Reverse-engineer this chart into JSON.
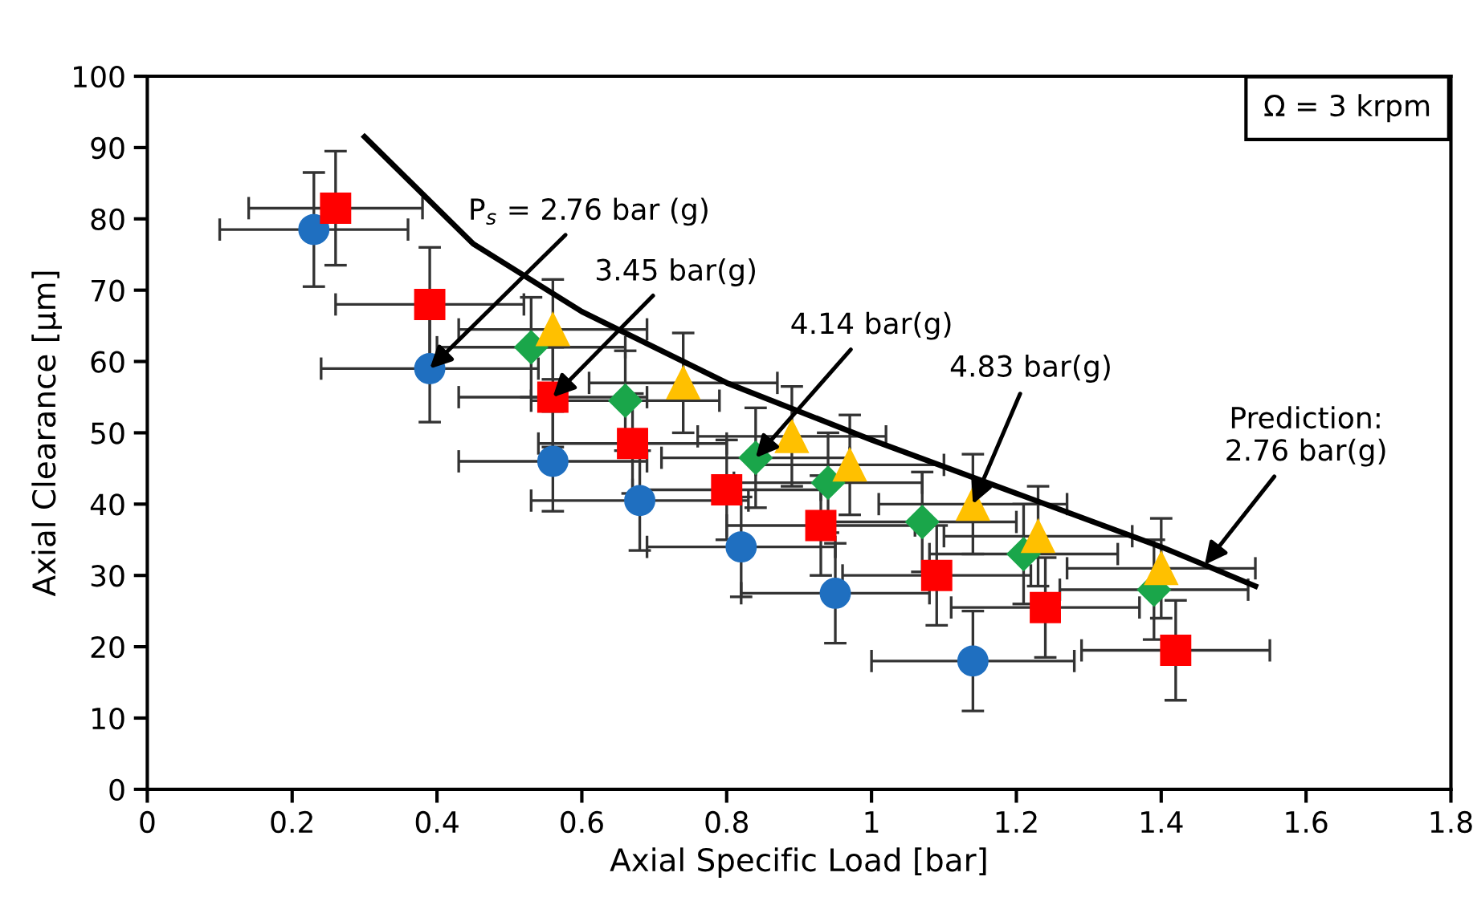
{
  "chart_data": {
    "type": "scatter",
    "xlabel": "Axial Specific Load [bar]",
    "ylabel": "Axial Clearance [μm]",
    "xlim": [
      0,
      1.8
    ],
    "xticks": [
      {
        "value": 0,
        "label": "0"
      },
      0.2,
      0.4,
      0.6,
      0.8,
      {
        "value": 1.0,
        "label": "1"
      },
      1.2,
      1.4,
      1.6,
      1.8
    ],
    "ylim": [
      0,
      100
    ],
    "yticks": [
      0,
      10,
      20,
      30,
      40,
      50,
      60,
      70,
      80,
      90,
      100
    ],
    "grid": false,
    "legend": false,
    "series": [
      {
        "marker": "circle",
        "color": "#1f6fc0",
        "x": [
          0.23,
          0.39,
          0.56,
          0.68,
          0.82,
          0.95,
          1.14
        ],
        "values": [
          78.5,
          59,
          46,
          40.5,
          34,
          27.5,
          18
        ],
        "errors": [
          8,
          7.5,
          7,
          7,
          7,
          7,
          7
        ],
        "xerrors": [
          0.13,
          0.15,
          0.13,
          0.15,
          0.13,
          0.13,
          0.14
        ]
      },
      {
        "marker": "square",
        "color": "#ff0000",
        "x": [
          0.26,
          0.39,
          0.56,
          0.67,
          0.8,
          0.93,
          1.09,
          1.24,
          1.42
        ],
        "values": [
          81.5,
          68,
          55,
          48.5,
          42,
          37,
          30,
          25.5,
          19.5
        ],
        "errors": [
          8,
          8,
          7,
          7,
          7,
          7,
          7,
          7,
          7
        ],
        "xerrors": [
          0.12,
          0.13,
          0.13,
          0.13,
          0.13,
          0.13,
          0.13,
          0.13,
          0.13
        ]
      },
      {
        "marker": "diamond",
        "color": "#1aa64a",
        "x": [
          0.53,
          0.66,
          0.84,
          0.94,
          1.07,
          1.21,
          1.39
        ],
        "values": [
          62,
          54.5,
          46.5,
          43,
          37.5,
          33,
          28
        ],
        "errors": [
          7,
          7,
          7,
          7,
          7,
          7,
          7
        ],
        "xerrors": [
          0.13,
          0.13,
          0.13,
          0.13,
          0.13,
          0.13,
          0.13
        ]
      },
      {
        "marker": "triangle",
        "color": "#ffc000",
        "x": [
          0.56,
          0.74,
          0.89,
          0.97,
          1.14,
          1.23,
          1.4
        ],
        "values": [
          64.5,
          57,
          49.5,
          45.5,
          40,
          35.5,
          31
        ],
        "errors": [
          7,
          7,
          7,
          7,
          7,
          7,
          7
        ],
        "xerrors": [
          0.13,
          0.13,
          0.13,
          0.13,
          0.13,
          0.13,
          0.13
        ]
      },
      {
        "type": "line",
        "marker": "none",
        "line_style": "solid",
        "color": "#000000",
        "x": [
          0.3,
          0.45,
          0.6,
          0.8,
          1.0,
          1.2,
          1.4,
          1.53
        ],
        "values": [
          91.5,
          76.5,
          67,
          57,
          49,
          41.5,
          34,
          28.5
        ]
      }
    ],
    "annotations": [
      {
        "text": "P$_{s}$ = 2.76 bar (g)",
        "x": 0.39,
        "y": 59
      },
      {
        "text": "3.45 bar(g)",
        "x": 0.56,
        "y": 55
      },
      {
        "text": "4.14 bar(g)",
        "x": 0.84,
        "y": 46.5
      },
      {
        "text": "4.83 bar(g)",
        "x": 1.14,
        "y": 40
      },
      {
        "text": "Prediction:\n2.76 bar(g)",
        "x": 1.46,
        "y": 31.5
      },
      "Ω = 3 krpm"
    ]
  }
}
